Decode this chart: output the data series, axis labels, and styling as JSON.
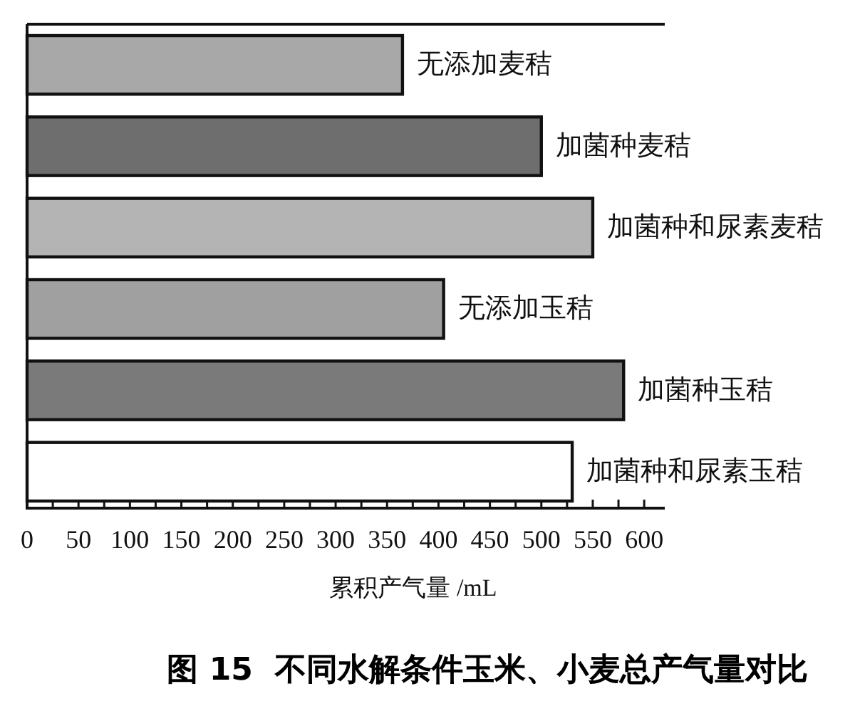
{
  "chart_data": {
    "type": "bar",
    "orientation": "horizontal",
    "title": "图 15  不同水解条件玉米、小麦总产气量对比",
    "xlabel": "累积产气量 /mL",
    "categories": [
      "无添加麦秸",
      "加菌种麦秸",
      "加菌种和尿素麦秸",
      "无添加玉秸",
      "加菌种玉秸",
      "加菌种和尿素玉秸"
    ],
    "values": [
      365,
      500,
      550,
      405,
      580,
      530
    ],
    "colors": [
      "#a8a8a8",
      "#6e6e6e",
      "#b4b4b4",
      "#a0a0a0",
      "#7a7a7a",
      "#ffffff"
    ],
    "xlim": [
      0,
      620
    ],
    "xticks": [
      0,
      {
        "value": 25,
        "label": null
      },
      50,
      {
        "value": 75,
        "label": null
      },
      100,
      {
        "value": 125,
        "label": null
      },
      150,
      {
        "value": 175,
        "label": null
      },
      200,
      {
        "value": 225,
        "label": null
      },
      250,
      {
        "value": 275,
        "label": null
      },
      300,
      {
        "value": 325,
        "label": null
      },
      350,
      {
        "value": 375,
        "label": null
      },
      400,
      {
        "value": 425,
        "label": null
      },
      450,
      {
        "value": 475,
        "label": null
      },
      500,
      {
        "value": 525,
        "label": null
      },
      550,
      {
        "value": 575,
        "label": null
      },
      600
    ]
  }
}
